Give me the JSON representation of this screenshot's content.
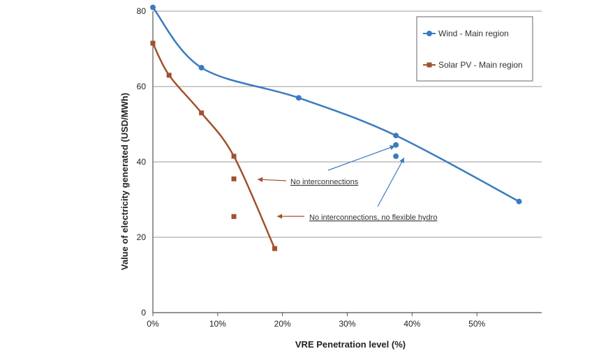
{
  "chart_data": {
    "type": "line",
    "title": "",
    "xlabel": "VRE Penetration level (%)",
    "ylabel": "Value of electricity generated (USD/MWh)",
    "xlim": [
      0,
      0.6
    ],
    "ylim": [
      0,
      80
    ],
    "x_ticks": [
      0,
      0.1,
      0.2,
      0.3,
      0.4,
      0.5
    ],
    "x_tick_labels": [
      "0%",
      "10%",
      "20%",
      "30%",
      "40%",
      "50%"
    ],
    "y_ticks": [
      0,
      20,
      40,
      60,
      80
    ],
    "y_tick_labels": [
      "0",
      "20",
      "40",
      "60",
      "80"
    ],
    "grid": {
      "horizontal": true,
      "vertical": false
    },
    "legend_position": "top-right",
    "series": [
      {
        "name": "Wind - Main region",
        "color": "#3b7bbf",
        "marker": "circle",
        "x": [
          0,
          0.075,
          0.225,
          0.375,
          0.565
        ],
        "y": [
          81,
          65,
          57,
          47,
          29.5
        ]
      },
      {
        "name": "Solar PV - Main region",
        "color": "#a0522d",
        "marker": "square",
        "x": [
          0,
          0.025,
          0.075,
          0.125,
          0.188
        ],
        "y": [
          71.5,
          63,
          53,
          41.5,
          17
        ]
      }
    ],
    "extra_points": [
      {
        "series": "Wind - Main region",
        "x": 0.375,
        "y": 44.5,
        "color": "#3b7bbf",
        "marker": "circle"
      },
      {
        "series": "Wind - Main region",
        "x": 0.375,
        "y": 41.5,
        "color": "#3b7bbf",
        "marker": "circle"
      },
      {
        "series": "Solar PV - Main region",
        "x": 0.125,
        "y": 35.5,
        "color": "#a0522d",
        "marker": "square"
      },
      {
        "series": "Solar PV - Main region",
        "x": 0.125,
        "y": 25.5,
        "color": "#a0522d",
        "marker": "square"
      }
    ],
    "annotations": [
      {
        "text": "No interconnections"
      },
      {
        "text": "No interconnections, no flexible hydro"
      }
    ]
  }
}
